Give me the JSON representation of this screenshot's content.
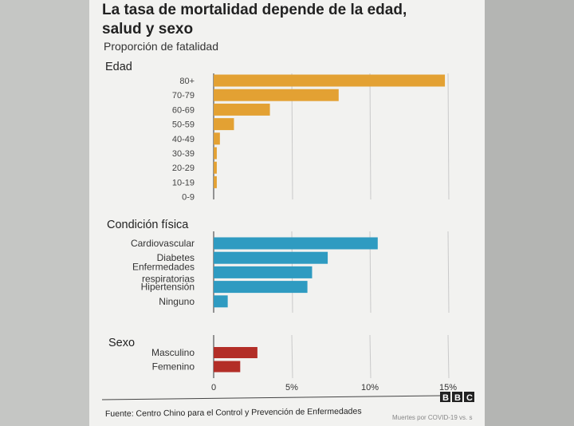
{
  "chart_data": {
    "type": "bar",
    "orientation": "horizontal",
    "title": "La tasa de mortalidad depende de la edad, salud y sexo",
    "title_lines": [
      "La tasa de mortalidad depende de la edad,",
      "salud y sexo"
    ],
    "subtitle": "Proporción de fatalidad",
    "xlim": [
      0,
      15
    ],
    "xticks": [
      "0",
      "5%",
      "10%",
      "15%"
    ],
    "grid": true,
    "groups": [
      {
        "label": "Edad",
        "color": "#e3a133",
        "categories": [
          "80+",
          "70-79",
          "60-69",
          "50-59",
          "40-49",
          "30-39",
          "20-29",
          "10-19",
          "0-9"
        ],
        "values": [
          14.8,
          8.0,
          3.6,
          1.3,
          0.4,
          0.2,
          0.2,
          0.2,
          0
        ]
      },
      {
        "label": "Condición física",
        "color": "#2f9bc1",
        "categories": [
          "Cardiovascular",
          "Diabetes",
          "Enfermedades respiratorias",
          "Hipertensión",
          "Ninguno"
        ],
        "category_lines": [
          [
            "Cardiovascular"
          ],
          [
            "Diabetes"
          ],
          [
            "Enfermedades",
            "respiratorias"
          ],
          [
            "Hipertensión"
          ],
          [
            "Ninguno"
          ]
        ],
        "values": [
          10.5,
          7.3,
          6.3,
          6.0,
          0.9
        ]
      },
      {
        "label": "Sexo",
        "color": "#b32e27",
        "categories": [
          "Masculino",
          "Femenino"
        ],
        "values": [
          2.8,
          1.7
        ]
      }
    ]
  },
  "source": "Fuente: Centro Chino para el Control y Prevención de Enfermedades",
  "logo": "BBC",
  "footer_fragment": "Muertes por COVID-19 vs. s"
}
